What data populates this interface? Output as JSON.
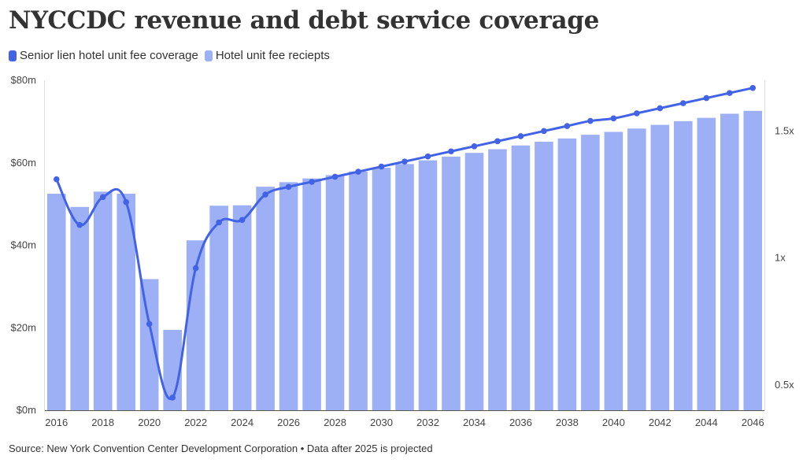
{
  "title": "NYCCDC revenue and debt service coverage",
  "legend": [
    {
      "label": "Senior lien hotel unit fee coverage",
      "color": "#4263e6"
    },
    {
      "label": "Hotel unit fee reciepts",
      "color": "#9db0f5"
    }
  ],
  "source": "Source: New York Convention Center Development Corporation • Data after 2025 is projected",
  "chart_data": {
    "type": "bar",
    "categories": [
      2016,
      2017,
      2018,
      2019,
      2020,
      2021,
      2022,
      2023,
      2024,
      2025,
      2026,
      2027,
      2028,
      2029,
      2030,
      2031,
      2032,
      2033,
      2034,
      2035,
      2036,
      2037,
      2038,
      2039,
      2040,
      2041,
      2042,
      2043,
      2044,
      2045,
      2046
    ],
    "series": [
      {
        "name": "Hotel unit fee reciepts",
        "type": "bar",
        "axis": "left",
        "color": "#9db0f5",
        "values": [
          52.5,
          49.3,
          53,
          52.5,
          31.8,
          19.5,
          41.2,
          49.6,
          49.7,
          54.2,
          55.3,
          56.2,
          57,
          57.9,
          58.8,
          59.7,
          60.6,
          61.5,
          62.4,
          63.3,
          64.2,
          65.1,
          65.9,
          66.8,
          67.5,
          68.3,
          69.2,
          70.1,
          70.9,
          71.9,
          72.6
        ]
      },
      {
        "name": "Senior lien hotel unit fee coverage",
        "type": "line",
        "axis": "right",
        "color": "#4263e6",
        "values": [
          1.31,
          1.13,
          1.24,
          1.22,
          0.74,
          0.45,
          0.96,
          1.14,
          1.15,
          1.25,
          1.28,
          1.3,
          1.32,
          1.34,
          1.36,
          1.38,
          1.4,
          1.42,
          1.44,
          1.46,
          1.48,
          1.5,
          1.52,
          1.54,
          1.55,
          1.57,
          1.59,
          1.61,
          1.63,
          1.65,
          1.67
        ]
      }
    ],
    "x_tick_labels": [
      "2016",
      "2018",
      "2020",
      "2022",
      "2024",
      "2026",
      "2028",
      "2030",
      "2032",
      "2034",
      "2036",
      "2038",
      "2040",
      "2042",
      "2044",
      "2046"
    ],
    "y_left": {
      "ticks": [
        0,
        20,
        40,
        60,
        80
      ],
      "tick_labels": [
        "$0m",
        "$20m",
        "$40m",
        "$60m",
        "$80m"
      ],
      "range": [
        0,
        80
      ]
    },
    "y_right": {
      "ticks": [
        0.5,
        1,
        1.5
      ],
      "tick_labels": [
        "0.5x",
        "1x",
        "1.5x"
      ],
      "range": [
        0.4,
        1.7
      ]
    },
    "grid": false,
    "legend_position": "top-left"
  }
}
